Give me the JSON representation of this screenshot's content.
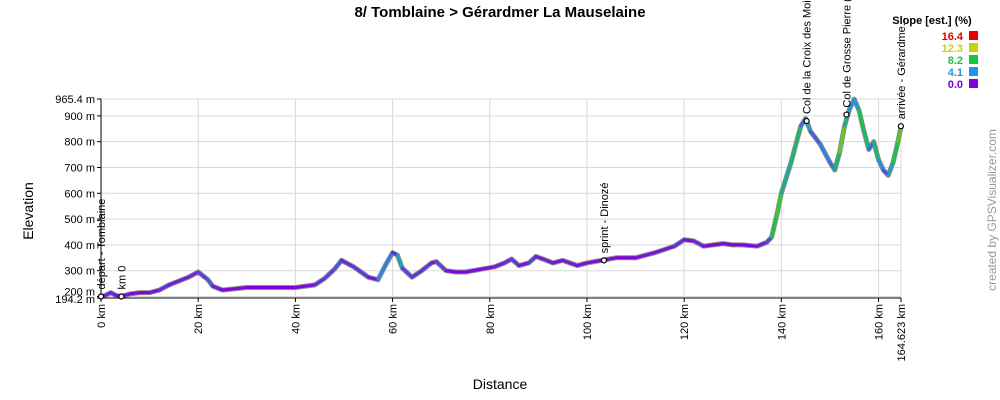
{
  "chart_data": {
    "type": "line",
    "title": "8/ Tomblaine > Gérardmer La Mauselaine",
    "xlabel": "Distance",
    "ylabel": "Elevation",
    "xlim": [
      0,
      164.623
    ],
    "ylim": [
      194.2,
      965.4
    ],
    "x_ticks": [
      {
        "value": 0,
        "label": "0 km"
      },
      {
        "value": 20,
        "label": "20 km"
      },
      {
        "value": 40,
        "label": "40 km"
      },
      {
        "value": 60,
        "label": "60 km"
      },
      {
        "value": 80,
        "label": "80 km"
      },
      {
        "value": 100,
        "label": "100 km"
      },
      {
        "value": 120,
        "label": "120 km"
      },
      {
        "value": 140,
        "label": "140 km"
      },
      {
        "value": 160,
        "label": "160 km"
      },
      {
        "value": 164.623,
        "label": "164.623 km"
      }
    ],
    "y_ticks": [
      {
        "value": 194.2,
        "label": "194.2 m"
      },
      {
        "value": 200,
        "label": "200 m"
      },
      {
        "value": 300,
        "label": "300 m"
      },
      {
        "value": 400,
        "label": "400 m"
      },
      {
        "value": 500,
        "label": "500 m"
      },
      {
        "value": 600,
        "label": "600 m"
      },
      {
        "value": 700,
        "label": "700 m"
      },
      {
        "value": 800,
        "label": "800 m"
      },
      {
        "value": 900,
        "label": "900 m"
      },
      {
        "value": 965.4,
        "label": "965.4 m"
      }
    ],
    "grid": true,
    "legend": {
      "title": "Slope [est.] (%)",
      "position": "top-right",
      "entries": [
        {
          "label": "16.4",
          "color": "#e60000"
        },
        {
          "label": "12.3",
          "color": "#c8d200"
        },
        {
          "label": "8.2",
          "color": "#14c83c"
        },
        {
          "label": "4.1",
          "color": "#1e96e6"
        },
        {
          "label": "0.0",
          "color": "#8200dc"
        }
      ]
    },
    "series": [
      {
        "x": [
          0,
          1,
          2,
          3,
          4,
          6,
          8,
          10,
          12,
          14,
          16,
          18,
          20,
          22,
          23,
          25,
          30,
          35,
          40,
          44,
          46,
          48,
          49.5,
          52,
          55,
          57,
          58.5,
          60,
          61,
          62,
          64,
          66,
          68,
          69,
          71,
          73,
          75,
          78,
          81,
          83,
          84.5,
          86,
          88,
          89.5,
          91,
          93,
          95,
          98,
          100,
          103,
          106,
          110,
          114,
          118,
          120,
          122,
          124,
          126,
          128,
          130,
          132,
          135,
          137,
          138,
          139,
          140,
          142,
          144,
          145,
          146,
          148,
          150,
          151,
          152,
          153,
          154,
          155,
          156,
          157,
          158,
          159,
          160,
          161,
          162,
          163,
          164,
          164.623
        ],
        "y": [
          200,
          205,
          215,
          205,
          200,
          210,
          215,
          215,
          225,
          245,
          260,
          275,
          295,
          265,
          240,
          225,
          235,
          235,
          235,
          245,
          270,
          305,
          340,
          315,
          275,
          265,
          320,
          370,
          360,
          310,
          275,
          300,
          330,
          335,
          300,
          295,
          295,
          305,
          315,
          330,
          345,
          320,
          330,
          355,
          345,
          330,
          340,
          320,
          330,
          340,
          350,
          350,
          370,
          395,
          420,
          415,
          395,
          400,
          405,
          400,
          400,
          395,
          410,
          430,
          510,
          600,
          720,
          860,
          890,
          840,
          790,
          720,
          690,
          760,
          860,
          925,
          965,
          920,
          840,
          770,
          800,
          730,
          690,
          670,
          720,
          800,
          860
        ]
      }
    ],
    "waypoints": [
      {
        "x": 0,
        "y": 200,
        "label": "départ - Tomblaine"
      },
      {
        "x": 4.2,
        "y": 200,
        "label": "km 0"
      },
      {
        "x": 103.5,
        "y": 340,
        "label": "sprint - Dinozé"
      },
      {
        "x": 145.2,
        "y": 880,
        "label": "Col de la Croix des Moi..."
      },
      {
        "x": 153.4,
        "y": 905,
        "label": "Col de Grosse Pierre (..."
      },
      {
        "x": 164.6,
        "y": 860,
        "label": "arrivée - Gérardme..."
      }
    ]
  },
  "credit": "created by GPSVisualizer.com"
}
